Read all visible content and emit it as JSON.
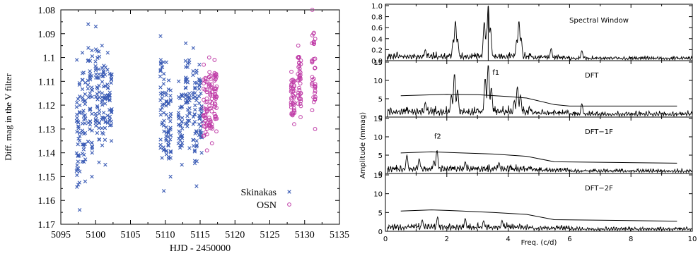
{
  "chart_data": [
    {
      "type": "scatter",
      "xlabel": "HJD - 2450000",
      "ylabel": "Diff. mag in the V filter",
      "xlim": [
        5095,
        5135
      ],
      "ylim": [
        1.17,
        1.08
      ],
      "y_inverted": true,
      "xticks": [
        "5095",
        "5100",
        "5105",
        "5110",
        "5115",
        "5120",
        "5125",
        "5130",
        "5135"
      ],
      "yticks": [
        "1.08",
        "1.09",
        "1.1",
        "1.11",
        "1.12",
        "1.13",
        "1.14",
        "1.15",
        "1.16",
        "1.17"
      ],
      "legend_position": "bottom-right",
      "grid": false,
      "series": [
        {
          "name": "Skinakas",
          "marker": "x",
          "color": "#3a5bb5",
          "nights": [
            {
              "x": [
                5097.2,
                5097.8
              ],
              "ymin": 1.101,
              "ymax": 1.164
            },
            {
              "x": [
                5098.0,
                5098.6
              ],
              "ymin": 1.098,
              "ymax": 1.152
            },
            {
              "x": [
                5098.8,
                5099.6
              ],
              "ymin": 1.086,
              "ymax": 1.15
            },
            {
              "x": [
                5099.9,
                5100.6
              ],
              "ymin": 1.087,
              "ymax": 1.144
            },
            {
              "x": [
                5100.8,
                5101.5
              ],
              "ymin": 1.095,
              "ymax": 1.145
            },
            {
              "x": [
                5101.6,
                5102.4
              ],
              "ymin": 1.098,
              "ymax": 1.135
            },
            {
              "x": [
                5109.2,
                5109.9
              ],
              "ymin": 1.091,
              "ymax": 1.156
            },
            {
              "x": [
                5110.0,
                5110.9
              ],
              "ymin": 1.102,
              "ymax": 1.15
            },
            {
              "x": [
                5111.8,
                5112.5
              ],
              "ymin": 1.11,
              "ymax": 1.145
            },
            {
              "x": [
                5112.8,
                5113.6
              ],
              "ymin": 1.094,
              "ymax": 1.138
            },
            {
              "x": [
                5113.9,
                5114.6
              ],
              "ymin": 1.096,
              "ymax": 1.154
            },
            {
              "x": [
                5114.8,
                5115.3
              ],
              "ymin": 1.103,
              "ymax": 1.14
            }
          ]
        },
        {
          "name": "OSN",
          "marker": "o",
          "color": "#c03ea8",
          "nights": [
            {
              "x": [
                5115.4,
                5116.1
              ],
              "ymin": 1.103,
              "ymax": 1.139
            },
            {
              "x": [
                5116.2,
                5116.8
              ],
              "ymin": 1.1,
              "ymax": 1.136
            },
            {
              "x": [
                5117.0,
                5117.4
              ],
              "ymin": 1.101,
              "ymax": 1.131
            },
            {
              "x": [
                5128.0,
                5128.6
              ],
              "ymin": 1.106,
              "ymax": 1.128
            },
            {
              "x": [
                5129.0,
                5129.5
              ],
              "ymin": 1.095,
              "ymax": 1.125
            },
            {
              "x": [
                5131.0,
                5131.6
              ],
              "ymin": 1.08,
              "ymax": 1.13
            }
          ]
        }
      ]
    },
    {
      "type": "line",
      "xlabel": "Freq. (c/d)",
      "ylabel": "Amplitude (mmag)",
      "xlim": [
        0,
        10
      ],
      "xticks": [
        "0",
        "2",
        "4",
        "6",
        "8",
        "10"
      ],
      "panels": [
        {
          "label": "Spectral Window",
          "ylim": [
            0,
            1.0
          ],
          "yticks": [
            "0.0",
            "0.2",
            "0.4",
            "0.6",
            "0.8",
            "1.0"
          ],
          "peaks": [
            {
              "x": 2.28,
              "y": 0.72
            },
            {
              "x": 2.35,
              "y": 0.4
            },
            {
              "x": 2.21,
              "y": 0.38
            },
            {
              "x": 3.22,
              "y": 0.7
            },
            {
              "x": 3.3,
              "y": 0.55
            },
            {
              "x": 3.35,
              "y": 1.0
            },
            {
              "x": 3.42,
              "y": 0.6
            },
            {
              "x": 4.35,
              "y": 0.72
            },
            {
              "x": 4.42,
              "y": 0.42
            },
            {
              "x": 4.28,
              "y": 0.38
            },
            {
              "x": 1.3,
              "y": 0.2
            },
            {
              "x": 5.4,
              "y": 0.22
            },
            {
              "x": 6.4,
              "y": 0.18
            }
          ],
          "noise": 0.06,
          "vline_x": 3.35
        },
        {
          "label": "DFT",
          "ylim": [
            0,
            15
          ],
          "yticks": [
            "0",
            "5",
            "10",
            "15"
          ],
          "annotations": [
            {
              "text": "f1",
              "x": 3.6,
              "y": 11.5
            }
          ],
          "peaks": [
            {
              "x": 2.25,
              "y": 11.8
            },
            {
              "x": 2.35,
              "y": 7.5
            },
            {
              "x": 2.15,
              "y": 6.0
            },
            {
              "x": 3.25,
              "y": 10.5
            },
            {
              "x": 3.35,
              "y": 14.3
            },
            {
              "x": 3.45,
              "y": 8.0
            },
            {
              "x": 4.3,
              "y": 8.3
            },
            {
              "x": 4.4,
              "y": 6.0
            },
            {
              "x": 4.2,
              "y": 4.5
            },
            {
              "x": 1.3,
              "y": 4.0
            },
            {
              "x": 6.4,
              "y": 3.6
            }
          ],
          "noise": 1.2,
          "threshold_x": [
            0.5,
            2,
            3,
            4,
            4.6,
            5.5,
            6,
            7,
            8,
            9.5
          ],
          "threshold_y": [
            5.8,
            6.2,
            6.1,
            5.6,
            5.2,
            3.4,
            3.0,
            3.0,
            3.0,
            3.0
          ]
        },
        {
          "label": "DFT−1F",
          "ylim": [
            0,
            15
          ],
          "yticks": [
            "0",
            "5",
            "10",
            "15"
          ],
          "annotations": [
            {
              "text": "f2",
              "x": 1.7,
              "y": 9.5
            }
          ],
          "peaks": [
            {
              "x": 1.68,
              "y": 6.3
            },
            {
              "x": 1.58,
              "y": 3.5
            },
            {
              "x": 0.7,
              "y": 5.0
            },
            {
              "x": 1.1,
              "y": 4.0
            },
            {
              "x": 2.6,
              "y": 3.2
            },
            {
              "x": 3.7,
              "y": 3.0
            }
          ],
          "noise": 1.0,
          "threshold_x": [
            0.5,
            1.5,
            2.5,
            3.5,
            4.6,
            5.5,
            6.5,
            7.5,
            9.5
          ],
          "threshold_y": [
            5.6,
            5.9,
            5.6,
            5.3,
            4.7,
            3.2,
            3.1,
            3.0,
            2.8
          ]
        },
        {
          "label": "DFT−2F",
          "ylim": [
            0,
            15
          ],
          "yticks": [
            "0",
            "5",
            "10",
            "15"
          ],
          "peaks": [
            {
              "x": 1.7,
              "y": 3.8
            },
            {
              "x": 2.6,
              "y": 3.4
            },
            {
              "x": 3.8,
              "y": 2.9
            },
            {
              "x": 1.2,
              "y": 3.0
            },
            {
              "x": 3.2,
              "y": 2.8
            }
          ],
          "noise": 0.9,
          "threshold_x": [
            0.5,
            1.5,
            2.5,
            3.5,
            4.6,
            5.5,
            6.5,
            7.5,
            9.5
          ],
          "threshold_y": [
            5.4,
            5.7,
            5.4,
            5.0,
            4.5,
            3.1,
            3.0,
            2.9,
            2.7
          ]
        }
      ]
    }
  ]
}
